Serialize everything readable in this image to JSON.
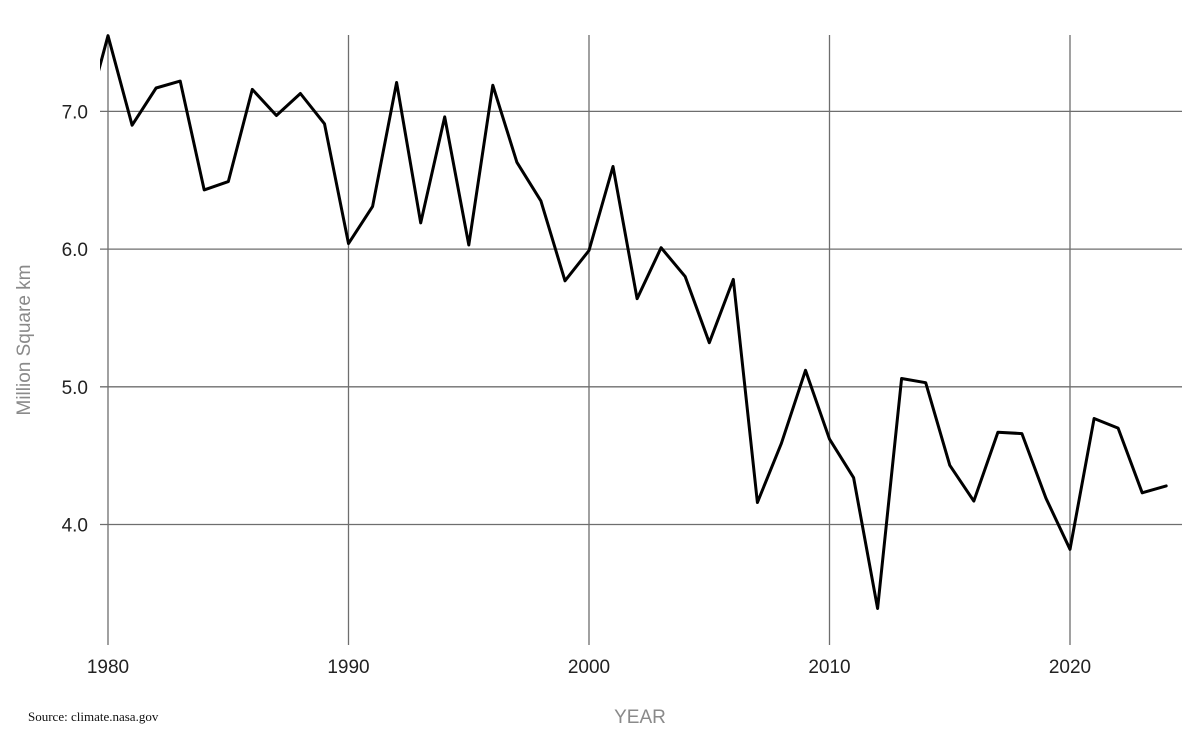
{
  "chart_data": {
    "type": "line",
    "title": "",
    "xlabel": "YEAR",
    "ylabel": "Million Square km",
    "source": "Source: climate.nasa.gov",
    "xlim": [
      1980,
      2025
    ],
    "ylim": [
      3.2,
      7.55
    ],
    "grid": true,
    "legend": "none",
    "x_ticks": [
      {
        "value": 1980,
        "label": "1980"
      },
      {
        "value": 1990,
        "label": "1990"
      },
      {
        "value": 2000,
        "label": "2000"
      },
      {
        "value": 2010,
        "label": "2010"
      },
      {
        "value": 2020,
        "label": "2020"
      }
    ],
    "y_ticks": [
      {
        "value": 4.0,
        "label": "4.0"
      },
      {
        "value": 5.0,
        "label": "5.0"
      },
      {
        "value": 6.0,
        "label": "6.0"
      },
      {
        "value": 7.0,
        "label": "7.0"
      }
    ],
    "line_color": "#000000",
    "series": [
      {
        "x": [
          1979,
          1980,
          1981,
          1982,
          1983,
          1984,
          1985,
          1986,
          1987,
          1988,
          1989,
          1990,
          1991,
          1992,
          1993,
          1994,
          1995,
          1996,
          1997,
          1998,
          1999,
          2000,
          2001,
          2002,
          2003,
          2004,
          2005,
          2006,
          2007,
          2008,
          2009,
          2010,
          2011,
          2012,
          2013,
          2014,
          2015,
          2016,
          2017,
          2018,
          2019,
          2020,
          2021,
          2022,
          2023,
          2024
        ],
        "values": [
          6.9,
          7.55,
          6.9,
          7.17,
          7.22,
          6.43,
          6.49,
          7.16,
          6.97,
          7.13,
          6.91,
          6.04,
          6.31,
          7.21,
          6.19,
          6.96,
          6.03,
          7.19,
          6.63,
          6.35,
          5.77,
          5.99,
          6.6,
          5.64,
          6.01,
          5.8,
          5.32,
          5.78,
          4.16,
          4.59,
          5.12,
          4.62,
          4.34,
          3.39,
          5.06,
          5.03,
          4.43,
          4.17,
          4.67,
          4.66,
          4.19,
          3.82,
          4.77,
          4.7,
          4.23,
          4.28
        ]
      }
    ]
  }
}
